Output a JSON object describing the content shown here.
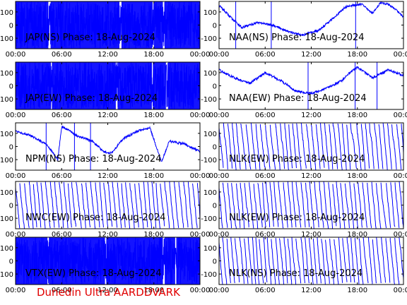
{
  "caption": "Dunedin Ultra AARDDVARK",
  "colors": {
    "trace": "#0000ff",
    "axis": "#000000",
    "caption": "#e00000"
  },
  "chart_data": [
    {
      "id": "jap-ns",
      "type": "line",
      "title": "JAP(NS) Phase: 18-Aug-2024",
      "x_ticks": [
        "00:00",
        "06:00",
        "12:00",
        "18:00",
        "00:00"
      ],
      "y_ticks": [
        100,
        0,
        -100
      ],
      "xlim": [
        0,
        24
      ],
      "ylim": [
        -180,
        180
      ],
      "series": [
        {
          "x": [
            0,
            24
          ],
          "y": [
            -180,
            180
          ],
          "style": "dense-wrapping"
        }
      ]
    },
    {
      "id": "naa-ns",
      "type": "line",
      "title": "NAA(NS) Phase: 18-Aug-2024",
      "x_ticks": [
        "00:00",
        "06:00",
        "12:00",
        "18:00",
        "00:00"
      ],
      "y_ticks": [
        100,
        0,
        -100
      ],
      "xlim": [
        0,
        24
      ],
      "ylim": [
        -180,
        180
      ],
      "series": [
        {
          "x": [
            0,
            1.5,
            3,
            5,
            7,
            9.5,
            11,
            13,
            15,
            16.5,
            17.5,
            18.5,
            20,
            21,
            22,
            23,
            24
          ],
          "y": [
            150,
            60,
            -20,
            20,
            0,
            -60,
            -75,
            -40,
            60,
            140,
            150,
            160,
            90,
            170,
            160,
            120,
            60
          ]
        }
      ]
    },
    {
      "id": "jap-ew",
      "type": "line",
      "title": "JAP(EW) Phase: 18-Aug-2024",
      "x_ticks": [
        "00:00",
        "06:00",
        "12:00",
        "18:00",
        "00:00"
      ],
      "y_ticks": [
        100,
        0,
        -100
      ],
      "xlim": [
        0,
        24
      ],
      "ylim": [
        -180,
        180
      ],
      "series": [
        {
          "x": [
            0,
            24
          ],
          "y": [
            -180,
            180
          ],
          "style": "dense-wrapping"
        }
      ]
    },
    {
      "id": "naa-ew",
      "type": "line",
      "title": "NAA(EW) Phase: 18-Aug-2024",
      "x_ticks": [
        "00:00",
        "06:00",
        "12:00",
        "18:00",
        "00:00"
      ],
      "y_ticks": [
        100,
        0,
        -100
      ],
      "xlim": [
        0,
        24
      ],
      "ylim": [
        -180,
        180
      ],
      "series": [
        {
          "x": [
            0,
            2,
            4,
            6,
            8,
            10,
            12,
            14,
            16,
            17,
            18,
            20,
            22,
            24
          ],
          "y": [
            120,
            60,
            20,
            100,
            40,
            -40,
            -60,
            -20,
            40,
            100,
            140,
            60,
            120,
            80
          ]
        }
      ]
    },
    {
      "id": "npm-ns",
      "type": "line",
      "title": "NPM(NS) Phase: 18-Aug-2024",
      "x_ticks": [
        "00:00",
        "06:00",
        "12:00",
        "18:00",
        "00:00"
      ],
      "y_ticks": [
        100,
        0,
        -100
      ],
      "xlim": [
        0,
        24
      ],
      "ylim": [
        -180,
        180
      ],
      "series": [
        {
          "x": [
            0,
            2,
            4,
            5.5,
            6,
            7,
            8,
            10,
            11.5,
            12.5,
            14,
            16,
            17.5,
            19,
            20,
            22,
            24
          ],
          "y": [
            120,
            80,
            20,
            -100,
            150,
            120,
            80,
            40,
            -40,
            -50,
            60,
            120,
            140,
            -120,
            40,
            20,
            -40
          ]
        }
      ]
    },
    {
      "id": "nlk-ew-1",
      "type": "line",
      "title": "NLK(EW) Phase: 18-Aug-2024",
      "x_ticks": [
        "00:00",
        "06:00",
        "12:00",
        "18:00",
        "00:00"
      ],
      "y_ticks": [
        100,
        0,
        -100
      ],
      "xlim": [
        0,
        24
      ],
      "ylim": [
        -180,
        180
      ],
      "series": [
        {
          "x": [
            0,
            24
          ],
          "y": [
            -180,
            180
          ],
          "style": "sawtooth-wrapping"
        }
      ]
    },
    {
      "id": "nwc-ew",
      "type": "line",
      "title": "NWC(EW) Phase: 18-Aug-2024",
      "x_ticks": [
        "00:00",
        "06:00",
        "12:00",
        "18:00",
        "00:00"
      ],
      "y_ticks": [
        100,
        0,
        -100
      ],
      "xlim": [
        0,
        24
      ],
      "ylim": [
        -180,
        180
      ],
      "series": [
        {
          "x": [
            0,
            24
          ],
          "y": [
            -180,
            180
          ],
          "style": "sawtooth-wrapping"
        }
      ]
    },
    {
      "id": "nlk-ew-2",
      "type": "line",
      "title": "NLK(EW) Phase: 18-Aug-2024",
      "x_ticks": [
        "00:00",
        "06:00",
        "12:00",
        "18:00",
        "00:00"
      ],
      "y_ticks": [
        100,
        0,
        -100
      ],
      "xlim": [
        0,
        24
      ],
      "ylim": [
        -180,
        180
      ],
      "series": [
        {
          "x": [
            0,
            24
          ],
          "y": [
            -180,
            180
          ],
          "style": "sawtooth-wrapping"
        }
      ]
    },
    {
      "id": "vtx-ew",
      "type": "line",
      "title": "VTX(EW) Phase: 18-Aug-2024",
      "x_ticks": [
        "00:00",
        "06:00",
        "12:00",
        "18:00",
        "00:00"
      ],
      "y_ticks": [
        100,
        0,
        -100
      ],
      "xlim": [
        0,
        24
      ],
      "ylim": [
        -180,
        180
      ],
      "series": [
        {
          "x": [
            0,
            24
          ],
          "y": [
            -180,
            180
          ],
          "style": "dense-wrapping"
        }
      ]
    },
    {
      "id": "nlk-ns",
      "type": "line",
      "title": "NLK(NS) Phase: 18-Aug-2024",
      "x_ticks": [
        "00:00",
        "06:00",
        "12:00",
        "18:00",
        "00:00"
      ],
      "y_ticks": [
        100,
        0,
        -100
      ],
      "xlim": [
        0,
        24
      ],
      "ylim": [
        -180,
        180
      ],
      "series": [
        {
          "x": [
            0,
            24
          ],
          "y": [
            -180,
            180
          ],
          "style": "sawtooth-wrapping"
        }
      ]
    }
  ]
}
